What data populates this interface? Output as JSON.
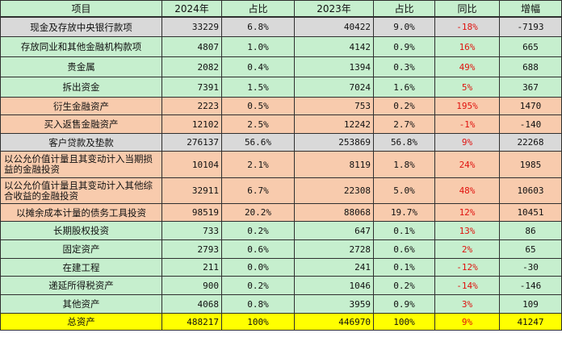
{
  "colors": {
    "grey": "#d9d9d9",
    "green": "#c6efce",
    "peach": "#f8cbad",
    "yellow": "#ffff00",
    "negative_red": "#e0120e"
  },
  "header": [
    "项目",
    "2024年",
    "占比",
    "2023年",
    "占比",
    "同比",
    "增幅"
  ],
  "rows": [
    {
      "item": "现金及存放中央银行款项",
      "v2024": "33229",
      "p2024": "6.8%",
      "v2023": "40422",
      "p2023": "9.0%",
      "yoy": "-18%",
      "inc": "-7193",
      "bg": "grey"
    },
    {
      "item": "存放同业和其他金融机构款项",
      "v2024": "4807",
      "p2024": "1.0%",
      "v2023": "4142",
      "p2023": "0.9%",
      "yoy": "16%",
      "inc": "665",
      "bg": "green"
    },
    {
      "item": "贵金属",
      "v2024": "2082",
      "p2024": "0.4%",
      "v2023": "1394",
      "p2023": "0.3%",
      "yoy": "49%",
      "inc": "688",
      "bg": "green"
    },
    {
      "item": "拆出资金",
      "v2024": "7391",
      "p2024": "1.5%",
      "v2023": "7024",
      "p2023": "1.6%",
      "yoy": "5%",
      "inc": "367",
      "bg": "green"
    },
    {
      "item": "衍生金融资产",
      "v2024": "2223",
      "p2024": "0.5%",
      "v2023": "753",
      "p2023": "0.2%",
      "yoy": "195%",
      "inc": "1470",
      "bg": "peach"
    },
    {
      "item": "买入返售金融资产",
      "v2024": "12102",
      "p2024": "2.5%",
      "v2023": "12242",
      "p2023": "2.7%",
      "yoy": "-1%",
      "inc": "-140",
      "bg": "peach"
    },
    {
      "item": "客户贷款及垫款",
      "v2024": "276137",
      "p2024": "56.6%",
      "v2023": "253869",
      "p2023": "56.8%",
      "yoy": "9%",
      "inc": "22268",
      "bg": "grey"
    },
    {
      "item": "以公允价值计量且其变动计入当期损益的金融投资",
      "v2024": "10104",
      "p2024": "2.1%",
      "v2023": "8119",
      "p2023": "1.8%",
      "yoy": "24%",
      "inc": "1985",
      "bg": "peach",
      "wrap": true
    },
    {
      "item": "以公允价值计量且其变动计入其他综合收益的金融投资",
      "v2024": "32911",
      "p2024": "6.7%",
      "v2023": "22308",
      "p2023": "5.0%",
      "yoy": "48%",
      "inc": "10603",
      "bg": "peach",
      "wrap": true
    },
    {
      "item": "以摊余成本计量的债务工具投资",
      "v2024": "98519",
      "p2024": "20.2%",
      "v2023": "88068",
      "p2023": "19.7%",
      "yoy": "12%",
      "inc": "10451",
      "bg": "peach"
    },
    {
      "item": "长期股权投资",
      "v2024": "733",
      "p2024": "0.2%",
      "v2023": "647",
      "p2023": "0.1%",
      "yoy": "13%",
      "inc": "86",
      "bg": "green"
    },
    {
      "item": "固定资产",
      "v2024": "2793",
      "p2024": "0.6%",
      "v2023": "2728",
      "p2023": "0.6%",
      "yoy": "2%",
      "inc": "65",
      "bg": "green"
    },
    {
      "item": "在建工程",
      "v2024": "211",
      "p2024": "0.0%",
      "v2023": "241",
      "p2023": "0.1%",
      "yoy": "-12%",
      "inc": "-30",
      "bg": "green"
    },
    {
      "item": "递延所得税资产",
      "v2024": "900",
      "p2024": "0.2%",
      "v2023": "1046",
      "p2023": "0.2%",
      "yoy": "-14%",
      "inc": "-146",
      "bg": "green"
    },
    {
      "item": "其他资产",
      "v2024": "4068",
      "p2024": "0.8%",
      "v2023": "3959",
      "p2023": "0.9%",
      "yoy": "3%",
      "inc": "109",
      "bg": "green"
    },
    {
      "item": "总资产",
      "v2024": "488217",
      "p2024": "100%",
      "v2023": "446970",
      "p2023": "100%",
      "yoy": "9%",
      "inc": "41247",
      "bg": "yellow"
    }
  ]
}
